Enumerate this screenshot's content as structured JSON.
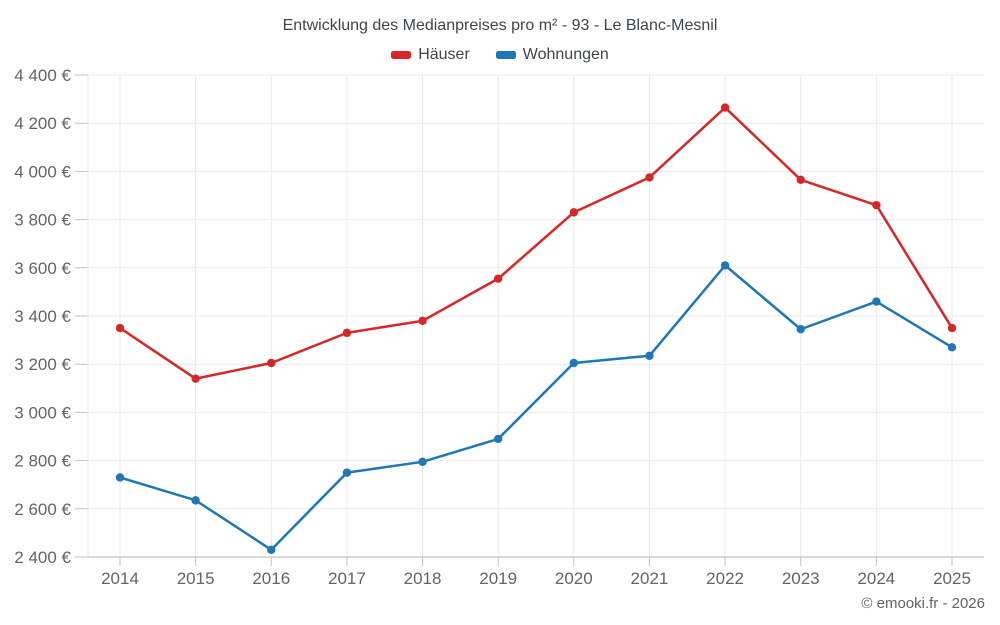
{
  "footer": "© emooki.fr - 2026",
  "chart_data": {
    "type": "line",
    "title": "Entwicklung des Medianpreises pro m² - 93 - Le Blanc-Mesnil",
    "categories": [
      "2014",
      "2015",
      "2016",
      "2017",
      "2018",
      "2019",
      "2020",
      "2021",
      "2022",
      "2023",
      "2024",
      "2025"
    ],
    "series": [
      {
        "name": "Häuser",
        "color": "#d62728",
        "values": [
          3350,
          3140,
          3205,
          3330,
          3380,
          3555,
          3830,
          3975,
          4265,
          3965,
          3860,
          3350
        ]
      },
      {
        "name": "Wohnungen",
        "color": "#1f77b4",
        "values": [
          2730,
          2635,
          2430,
          2750,
          2795,
          2890,
          3205,
          3235,
          3610,
          3345,
          3460,
          3270
        ]
      }
    ],
    "ylim": [
      2400,
      4400
    ],
    "ytick_step": 200,
    "ytick_labels": [
      "2 400 €",
      "2 600 €",
      "2 800 €",
      "3 000 €",
      "3 200 €",
      "3 400 €",
      "3 600 €",
      "3 800 €",
      "4 000 €",
      "4 200 €",
      "4 400 €"
    ],
    "grid": true,
    "legend_position": "top",
    "marker": "circle",
    "colors": {
      "grid": "#eaeaea",
      "axis": "#c2c2c2",
      "tick_text": "#60666a",
      "title_text": "#3f464b"
    }
  }
}
